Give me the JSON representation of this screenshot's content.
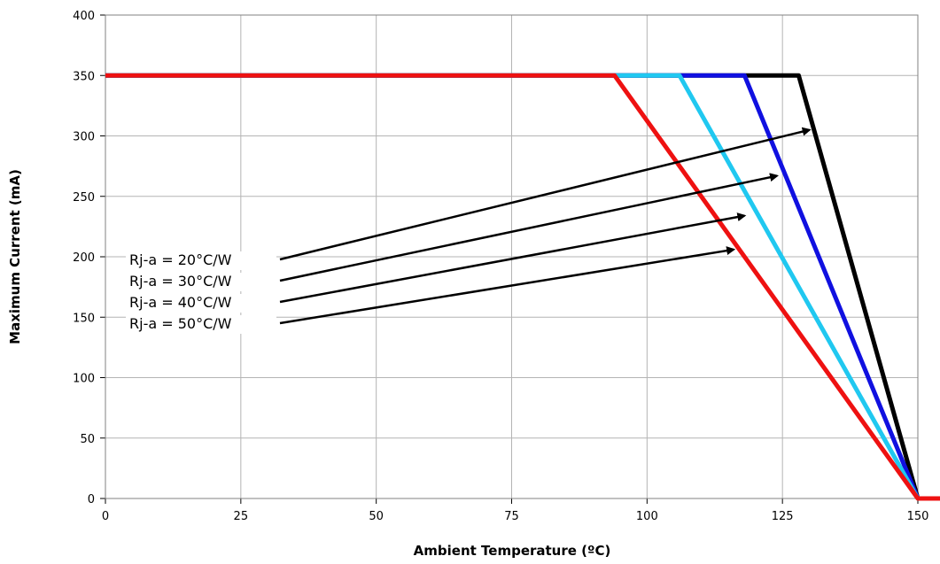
{
  "chart_data": {
    "type": "line",
    "title": "",
    "xlabel": "Ambient Temperature (ºC)",
    "ylabel": "Maximum Current (mA)",
    "xlim": [
      0,
      150
    ],
    "ylim": [
      0,
      400
    ],
    "xticks": [
      0,
      25,
      50,
      75,
      100,
      125,
      150
    ],
    "yticks": [
      0,
      50,
      100,
      150,
      200,
      250,
      300,
      350,
      400
    ],
    "grid": true,
    "legend": "none",
    "series": [
      {
        "color": "#000000",
        "x": [
          0,
          128,
          150
        ],
        "y": [
          350,
          350,
          0
        ]
      },
      {
        "color": "#1010e0",
        "x": [
          0,
          118,
          150
        ],
        "y": [
          350,
          350,
          0
        ]
      },
      {
        "color": "#20c8f0",
        "x": [
          0,
          106,
          150
        ],
        "y": [
          350,
          350,
          0
        ]
      },
      {
        "color": "#ee1111",
        "x": [
          0,
          94,
          150,
          155
        ],
        "y": [
          350,
          350,
          0,
          0
        ]
      }
    ],
    "annotations": [
      {
        "text": "Rj-a = 20°C/W",
        "target": [
          130,
          305
        ]
      },
      {
        "text": "Rj-a = 30°C/W",
        "target": [
          124,
          267
        ]
      },
      {
        "text": "Rj-a = 40°C/W",
        "target": [
          118,
          234
        ]
      },
      {
        "text": "Rj-a = 50°C/W",
        "target": [
          116,
          206
        ]
      }
    ]
  }
}
